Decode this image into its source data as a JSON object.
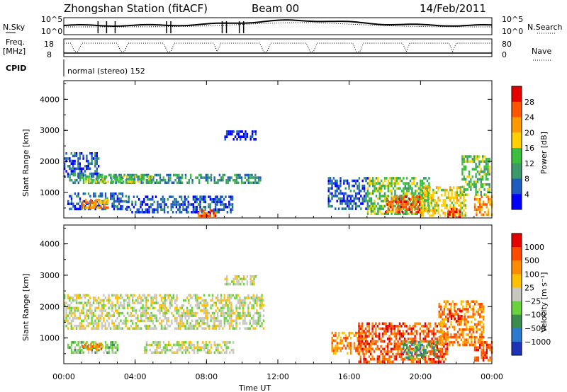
{
  "header": {
    "title": "Zhongshan Station (fitACF)",
    "beam": "Beam 00",
    "date": "14/Feb/2011"
  },
  "params": {
    "nsky_label": "N.Sky",
    "nsky_ticks": [
      "10^5",
      "10^0"
    ],
    "nsearch_label": "N.Search",
    "nsearch_ticks": [
      "10^5",
      "10^0"
    ],
    "freq_label_line1": "Freq.",
    "freq_label_line2": "[MHz]",
    "freq_ticks": [
      "18",
      "8"
    ],
    "nave_label": "Nave",
    "nave_ticks": [
      "80",
      "0"
    ],
    "cpid_label": "CPID",
    "cpid_text": "normal (stereo) 152"
  },
  "colors": {
    "power": [
      "#0000ff",
      "#1e5dbf",
      "#3c9a6a",
      "#3cbf3c",
      "#ffd000",
      "#ff9900",
      "#ff5500",
      "#e60000"
    ],
    "velocity": [
      "#1f33b8",
      "#2c7ad0",
      "#3c8c50",
      "#6ad23c",
      "#c8c8c0",
      "#ffc000",
      "#ff8c00",
      "#ff4a00",
      "#e60000"
    ],
    "ground_scatter": "#c0c0b8"
  },
  "chart_data": [
    {
      "type": "heatmap",
      "name": "power",
      "ylabel": "Slant Range [km]",
      "ylim": [
        180,
        4600
      ],
      "yticks": [
        "1000",
        "2000",
        "3000",
        "4000"
      ],
      "xlim": [
        0,
        24
      ],
      "xticks": [
        "00:00",
        "04:00",
        "08:00",
        "12:00",
        "16:00",
        "20:00",
        "00:00"
      ],
      "colorbar_label": "Power [dB]",
      "colorbar_ticks": [
        "4",
        "8",
        "12",
        "16",
        "20",
        "24",
        "28"
      ],
      "colorbar_range": [
        0,
        32
      ],
      "patches": [
        {
          "t0": 0.0,
          "t1": 2.0,
          "r0": 1500,
          "r1": 2300,
          "level": 1
        },
        {
          "t0": 0.3,
          "t1": 11.0,
          "r0": 1300,
          "r1": 1600,
          "level": 2
        },
        {
          "t0": 1.2,
          "t1": 5.0,
          "r0": 1350,
          "r1": 1550,
          "level": 3
        },
        {
          "t0": 0.2,
          "t1": 3.5,
          "r0": 500,
          "r1": 1000,
          "level": 1
        },
        {
          "t0": 1.0,
          "t1": 2.5,
          "r0": 550,
          "r1": 800,
          "level": 5
        },
        {
          "t0": 3.5,
          "t1": 9.5,
          "r0": 400,
          "r1": 900,
          "level": 1
        },
        {
          "t0": 7.5,
          "t1": 8.5,
          "r0": 250,
          "r1": 450,
          "level": 6
        },
        {
          "t0": 9.0,
          "t1": 10.8,
          "r0": 2700,
          "r1": 3000,
          "level": 0
        },
        {
          "t0": 14.8,
          "t1": 17.0,
          "r0": 500,
          "r1": 1500,
          "level": 1
        },
        {
          "t0": 17.0,
          "t1": 20.5,
          "r0": 300,
          "r1": 1500,
          "level": 3
        },
        {
          "t0": 18.0,
          "t1": 20.0,
          "r0": 400,
          "r1": 900,
          "level": 6
        },
        {
          "t0": 20.0,
          "t1": 22.5,
          "r0": 250,
          "r1": 1200,
          "level": 4
        },
        {
          "t0": 21.5,
          "t1": 22.2,
          "r0": 250,
          "r1": 500,
          "level": 7
        },
        {
          "t0": 22.3,
          "t1": 23.9,
          "r0": 900,
          "r1": 2200,
          "level": 3
        },
        {
          "t0": 23.0,
          "t1": 24.0,
          "r0": 300,
          "r1": 900,
          "level": 5
        }
      ]
    },
    {
      "type": "heatmap",
      "name": "velocity",
      "ylabel": "Slant Range [km]",
      "ylim": [
        180,
        4600
      ],
      "yticks": [
        "1000",
        "2000",
        "3000",
        "4000"
      ],
      "xlim": [
        0,
        24
      ],
      "xticks": [
        "00:00",
        "04:00",
        "08:00",
        "12:00",
        "16:00",
        "20:00",
        "00:00"
      ],
      "xlabel": "Time UT",
      "colorbar_label": "Velocity [m s⁻¹]",
      "colorbar_ticks": [
        "1000",
        "500",
        "100",
        "25",
        "−25",
        "−100",
        "−500",
        "−1000"
      ],
      "patches": [
        {
          "t0": 0.0,
          "t1": 11.2,
          "r0": 1300,
          "r1": 2400,
          "level": 4
        },
        {
          "t0": 0.2,
          "t1": 3.0,
          "r0": 550,
          "r1": 900,
          "level": 3
        },
        {
          "t0": 1.0,
          "t1": 2.2,
          "r0": 650,
          "r1": 850,
          "level": 6
        },
        {
          "t0": 4.5,
          "t1": 9.5,
          "r0": 500,
          "r1": 900,
          "level": 4
        },
        {
          "t0": 9.0,
          "t1": 10.8,
          "r0": 2700,
          "r1": 3000,
          "level": 4
        },
        {
          "t0": 15.0,
          "t1": 17.0,
          "r0": 500,
          "r1": 1200,
          "level": 6
        },
        {
          "t0": 16.5,
          "t1": 21.5,
          "r0": 250,
          "r1": 1500,
          "level": 7
        },
        {
          "t0": 19.0,
          "t1": 21.0,
          "r0": 400,
          "r1": 900,
          "level": 2
        },
        {
          "t0": 21.0,
          "t1": 23.5,
          "r0": 800,
          "r1": 2200,
          "level": 6
        },
        {
          "t0": 21.5,
          "t1": 22.3,
          "r0": 1500,
          "r1": 1900,
          "level": 8
        },
        {
          "t0": 23.0,
          "t1": 24.0,
          "r0": 300,
          "r1": 900,
          "level": 7
        }
      ]
    }
  ]
}
